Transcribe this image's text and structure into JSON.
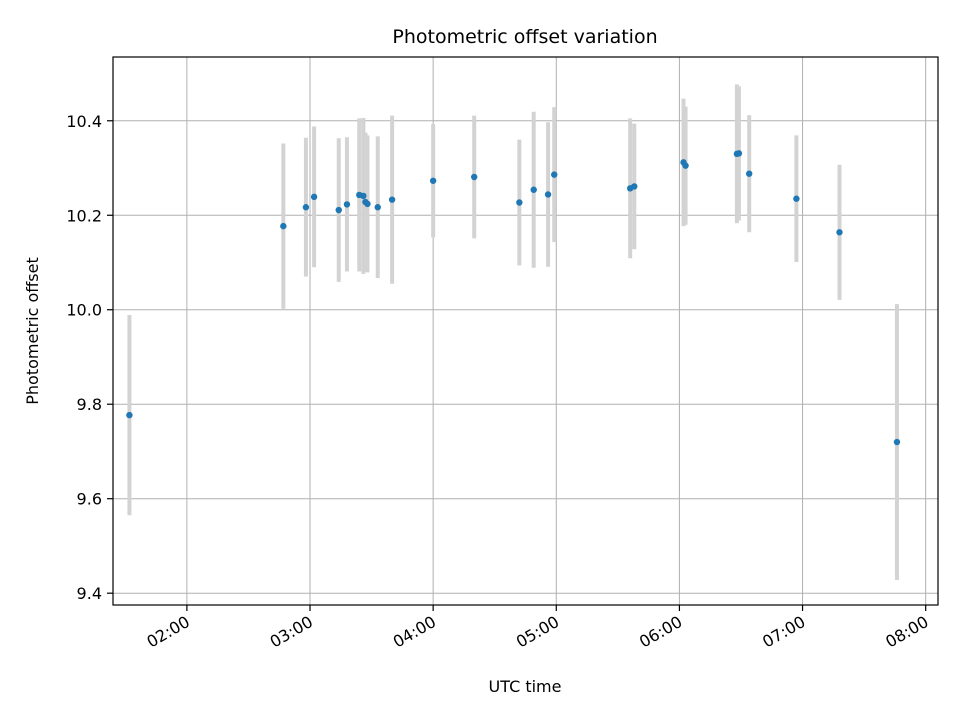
{
  "chart_data": {
    "type": "scatter",
    "title": "Photometric offset variation",
    "xlabel": "UTC time",
    "ylabel": "Photometric offset",
    "xlim": [
      "01:24",
      "08:06"
    ],
    "ylim": [
      9.375,
      10.535
    ],
    "x_ticks": [
      "02:00",
      "03:00",
      "04:00",
      "05:00",
      "06:00",
      "07:00",
      "08:00"
    ],
    "y_ticks": [
      9.4,
      9.6,
      9.8,
      10.0,
      10.2,
      10.4
    ],
    "y_tick_labels": [
      "9.4",
      "9.6",
      "9.8",
      "10.0",
      "10.2",
      "10.4"
    ],
    "grid": true,
    "point_color": "#1f77b4",
    "errorbar_color": "#d3d3d3",
    "points": [
      {
        "x": "01:32",
        "y": 9.777,
        "err": 0.212
      },
      {
        "x": "02:47",
        "y": 10.177,
        "err": 0.175
      },
      {
        "x": "02:58",
        "y": 10.217,
        "err": 0.147
      },
      {
        "x": "03:02",
        "y": 10.239,
        "err": 0.149
      },
      {
        "x": "03:14",
        "y": 10.211,
        "err": 0.152
      },
      {
        "x": "03:18",
        "y": 10.223,
        "err": 0.142
      },
      {
        "x": "03:24",
        "y": 10.243,
        "err": 0.162
      },
      {
        "x": "03:26",
        "y": 10.241,
        "err": 0.165
      },
      {
        "x": "03:27",
        "y": 10.228,
        "err": 0.147
      },
      {
        "x": "03:28",
        "y": 10.224,
        "err": 0.145
      },
      {
        "x": "03:33",
        "y": 10.217,
        "err": 0.15
      },
      {
        "x": "03:40",
        "y": 10.233,
        "err": 0.178
      },
      {
        "x": "04:00",
        "y": 10.273,
        "err": 0.12
      },
      {
        "x": "04:20",
        "y": 10.281,
        "err": 0.13
      },
      {
        "x": "04:42",
        "y": 10.227,
        "err": 0.133
      },
      {
        "x": "04:49",
        "y": 10.254,
        "err": 0.165
      },
      {
        "x": "04:56",
        "y": 10.244,
        "err": 0.153
      },
      {
        "x": "04:59",
        "y": 10.286,
        "err": 0.143
      },
      {
        "x": "05:36",
        "y": 10.257,
        "err": 0.148
      },
      {
        "x": "05:38",
        "y": 10.261,
        "err": 0.133
      },
      {
        "x": "06:02",
        "y": 10.312,
        "err": 0.135
      },
      {
        "x": "06:03",
        "y": 10.305,
        "err": 0.125
      },
      {
        "x": "06:28",
        "y": 10.33,
        "err": 0.147
      },
      {
        "x": "06:29",
        "y": 10.331,
        "err": 0.142
      },
      {
        "x": "06:34",
        "y": 10.288,
        "err": 0.124
      },
      {
        "x": "06:57",
        "y": 10.235,
        "err": 0.134
      },
      {
        "x": "07:18",
        "y": 10.164,
        "err": 0.143
      },
      {
        "x": "07:46",
        "y": 9.72,
        "err": 0.292
      }
    ]
  }
}
